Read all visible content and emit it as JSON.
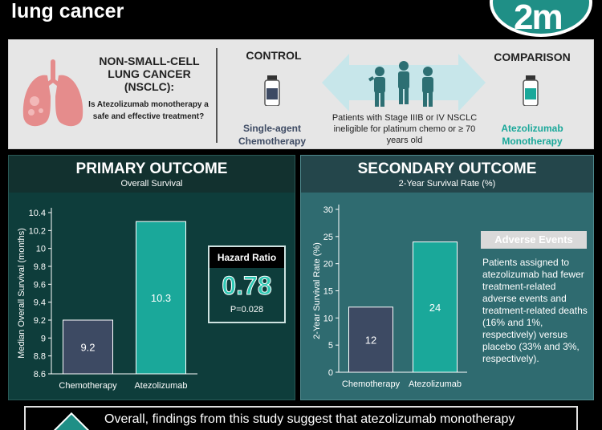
{
  "header": {
    "title": "lung cancer",
    "logo_text": "2m"
  },
  "design": {
    "condition_title": "NON-SMALL-CELL LUNG CANCER (NSCLC):",
    "question": "Is Atezolizumab monotherapy a safe and effective treatment?",
    "control_label": "CONTROL",
    "control_treatment": "Single-agent Chemotherapy",
    "comparison_label": "COMPARISON",
    "comparison_treatment": "Atezolizumab Monotherapy",
    "population": "Patients with Stage IIIB or IV NSCLC ineligible for platinum chemo or ≥ 70 years old",
    "colors": {
      "control": "#3d4a63",
      "comparison": "#1aa89a",
      "lungs": "#e58c8c"
    }
  },
  "primary": {
    "title": "PRIMARY OUTCOME",
    "subtitle": "Overall Survival",
    "hazard": {
      "label": "Hazard Ratio",
      "value": "0.78",
      "p": "P=0.028"
    }
  },
  "secondary": {
    "title": "SECONDARY OUTCOME",
    "subtitle": "2-Year Survival Rate (%)",
    "adverse_title": "Adverse Events",
    "adverse_text": "Patients assigned to atezolizumab had fewer treatment-related adverse events and treatment-related deaths (16% and 1%, respectively) versus placebo (33% and 3%, respectively)."
  },
  "conclusion": {
    "text": "Overall, findings from this study suggest that atezolizumab monotherapy"
  },
  "chart_data": [
    {
      "type": "bar",
      "title": "Overall Survival",
      "ylabel": "Median Overall Survival (months)",
      "xlabel": "",
      "categories": [
        "Chemotherapy",
        "Atezolizumab"
      ],
      "values": [
        9.2,
        10.3
      ],
      "value_labels": [
        "9.2",
        "10.3"
      ],
      "ylim": [
        8.6,
        10.4
      ],
      "yticks": [
        8.6,
        8.8,
        9,
        9.2,
        9.4,
        9.6,
        9.8,
        10,
        10.2,
        10.4
      ],
      "ytick_labels": [
        "8.6",
        "8.8",
        "9",
        "9.2",
        "9.4",
        "9.6",
        "9.8",
        "10",
        "10.2",
        "10.4"
      ],
      "bar_colors": [
        "#3d4a63",
        "#1aa89a"
      ],
      "grid": false
    },
    {
      "type": "bar",
      "title": "2-Year Survival Rate (%)",
      "ylabel": "2-Year Survival Rate (%)",
      "xlabel": "",
      "categories": [
        "Chemotherapy",
        "Atezolizumab"
      ],
      "values": [
        12,
        24
      ],
      "value_labels": [
        "12",
        "24"
      ],
      "ylim": [
        0,
        30
      ],
      "yticks": [
        0,
        5,
        10,
        15,
        20,
        25,
        30
      ],
      "ytick_labels": [
        "0",
        "5",
        "10",
        "15",
        "20",
        "25",
        "30"
      ],
      "bar_colors": [
        "#3d4a63",
        "#1aa89a"
      ],
      "grid": false
    }
  ]
}
